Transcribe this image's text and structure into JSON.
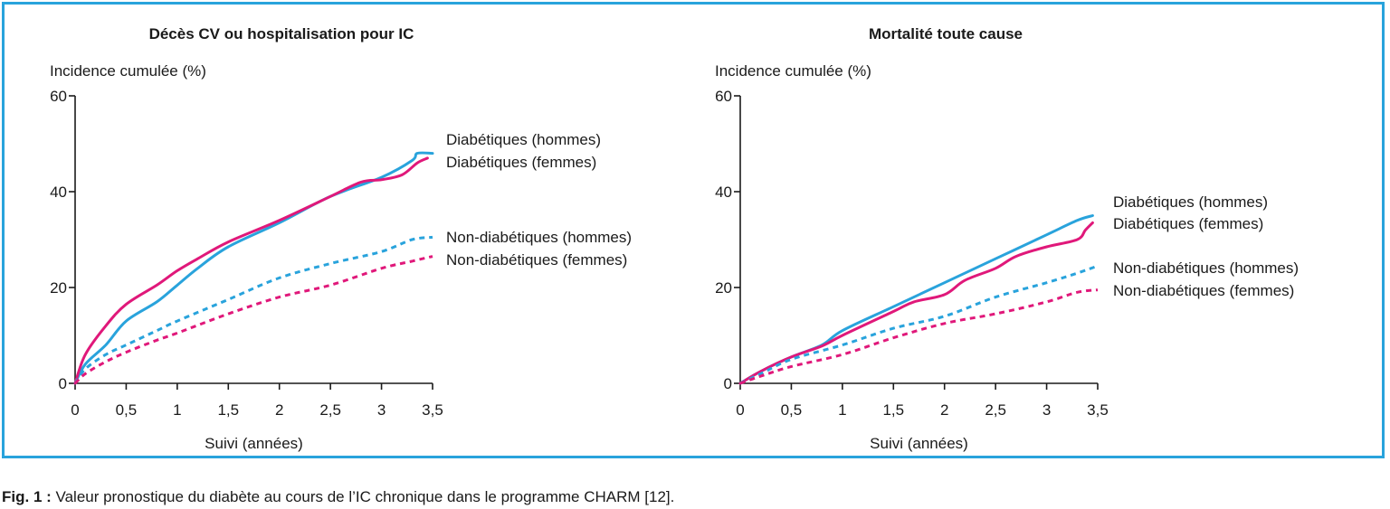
{
  "caption": {
    "label": "Fig. 1 :",
    "text": " Valeur pronostique du diabète au cours de l’IC chronique dans le programme CHARM [12]."
  },
  "colors": {
    "frame": "#29a3dc",
    "hommes": "#29a3dc",
    "femmes": "#e0187a",
    "axis": "#1a1a1a"
  },
  "chart_data": [
    {
      "type": "line",
      "title": "Décès CV ou hospitalisation pour IC",
      "ylabel": "Incidence cumulée (%)",
      "xlabel": "Suivi (années)",
      "xlim": [
        0,
        3.5
      ],
      "ylim": [
        0,
        60
      ],
      "xticks": [
        0,
        0.5,
        1,
        1.5,
        2,
        2.5,
        3,
        3.5
      ],
      "xtick_labels": [
        "0",
        "0,5",
        "1",
        "1,5",
        "2",
        "2,5",
        "3",
        "3,5"
      ],
      "yticks": [
        0,
        20,
        40,
        60
      ],
      "ytick_labels": [
        "0",
        "20",
        "40",
        "60"
      ],
      "grid": false,
      "legend": "labels at right end of lines",
      "series": [
        {
          "name": "Diabétiques (hommes)",
          "color": "#29a3dc",
          "dash": false,
          "x": [
            0,
            0.1,
            0.3,
            0.5,
            0.8,
            1.0,
            1.2,
            1.5,
            2.0,
            2.5,
            3.0,
            3.3,
            3.35,
            3.5
          ],
          "y": [
            0,
            4,
            8,
            13,
            17,
            20.5,
            24,
            28.5,
            33.5,
            39,
            43,
            46.5,
            48,
            48
          ]
        },
        {
          "name": "Diabétiques (femmes)",
          "color": "#e0187a",
          "dash": false,
          "x": [
            0,
            0.1,
            0.3,
            0.5,
            0.8,
            1.0,
            1.2,
            1.5,
            2.0,
            2.5,
            2.8,
            3.0,
            3.2,
            3.35,
            3.45
          ],
          "y": [
            0,
            6,
            12,
            16.5,
            20.5,
            23.5,
            26,
            29.5,
            34,
            39,
            42,
            42.5,
            43.5,
            46,
            47
          ]
        },
        {
          "name": "Non-diabétiques (hommes)",
          "color": "#29a3dc",
          "dash": true,
          "x": [
            0,
            0.1,
            0.3,
            0.5,
            0.8,
            1.0,
            1.5,
            2.0,
            2.5,
            3.0,
            3.3,
            3.5
          ],
          "y": [
            0,
            3,
            6,
            8,
            11,
            13,
            17.5,
            22,
            25,
            27.5,
            30,
            30.5
          ]
        },
        {
          "name": "Non-diabétiques (femmes)",
          "color": "#e0187a",
          "dash": true,
          "x": [
            0,
            0.1,
            0.3,
            0.5,
            0.8,
            1.0,
            1.5,
            2.0,
            2.5,
            3.0,
            3.3,
            3.5
          ],
          "y": [
            0,
            2,
            4.5,
            6.5,
            9,
            10.5,
            14.5,
            18,
            20.5,
            24,
            25.5,
            26.5
          ]
        }
      ]
    },
    {
      "type": "line",
      "title": "Mortalité toute cause",
      "ylabel": "Incidence cumulée (%)",
      "xlabel": "Suivi (années)",
      "xlim": [
        0,
        3.5
      ],
      "ylim": [
        0,
        60
      ],
      "xticks": [
        0,
        0.5,
        1,
        1.5,
        2,
        2.5,
        3,
        3.5
      ],
      "xtick_labels": [
        "0",
        "0,5",
        "1",
        "1,5",
        "2",
        "2,5",
        "3",
        "3,5"
      ],
      "yticks": [
        0,
        20,
        40,
        60
      ],
      "ytick_labels": [
        "0",
        "20",
        "40",
        "60"
      ],
      "grid": false,
      "legend": "labels at right end of lines",
      "series": [
        {
          "name": "Diabétiques (hommes)",
          "color": "#29a3dc",
          "dash": false,
          "x": [
            0,
            0.2,
            0.5,
            0.8,
            1.0,
            1.5,
            2.0,
            2.5,
            3.0,
            3.3,
            3.45
          ],
          "y": [
            0,
            2.5,
            5.5,
            8,
            11,
            16,
            21,
            26,
            31,
            34,
            35
          ]
        },
        {
          "name": "Diabétiques (femmes)",
          "color": "#e0187a",
          "dash": false,
          "x": [
            0,
            0.2,
            0.5,
            0.8,
            1.0,
            1.5,
            1.7,
            2.0,
            2.2,
            2.5,
            2.7,
            3.0,
            3.3,
            3.38,
            3.45
          ],
          "y": [
            0,
            2.5,
            5.5,
            7.8,
            10,
            15,
            17,
            18.5,
            21.5,
            24,
            26.5,
            28.5,
            30,
            32,
            33.5
          ]
        },
        {
          "name": "Non-diabétiques (hommes)",
          "color": "#29a3dc",
          "dash": true,
          "x": [
            0,
            0.2,
            0.5,
            1.0,
            1.5,
            2.0,
            2.5,
            3.0,
            3.3,
            3.5
          ],
          "y": [
            0,
            2,
            5,
            8,
            11.5,
            14,
            18,
            21,
            23,
            24.5
          ]
        },
        {
          "name": "Non-diabétiques (femmes)",
          "color": "#e0187a",
          "dash": true,
          "x": [
            0,
            0.2,
            0.5,
            1.0,
            1.5,
            2.0,
            2.5,
            3.0,
            3.3,
            3.5
          ],
          "y": [
            0,
            1.5,
            3.5,
            6,
            9.5,
            12.5,
            14.5,
            17,
            19,
            19.5
          ]
        }
      ]
    }
  ]
}
